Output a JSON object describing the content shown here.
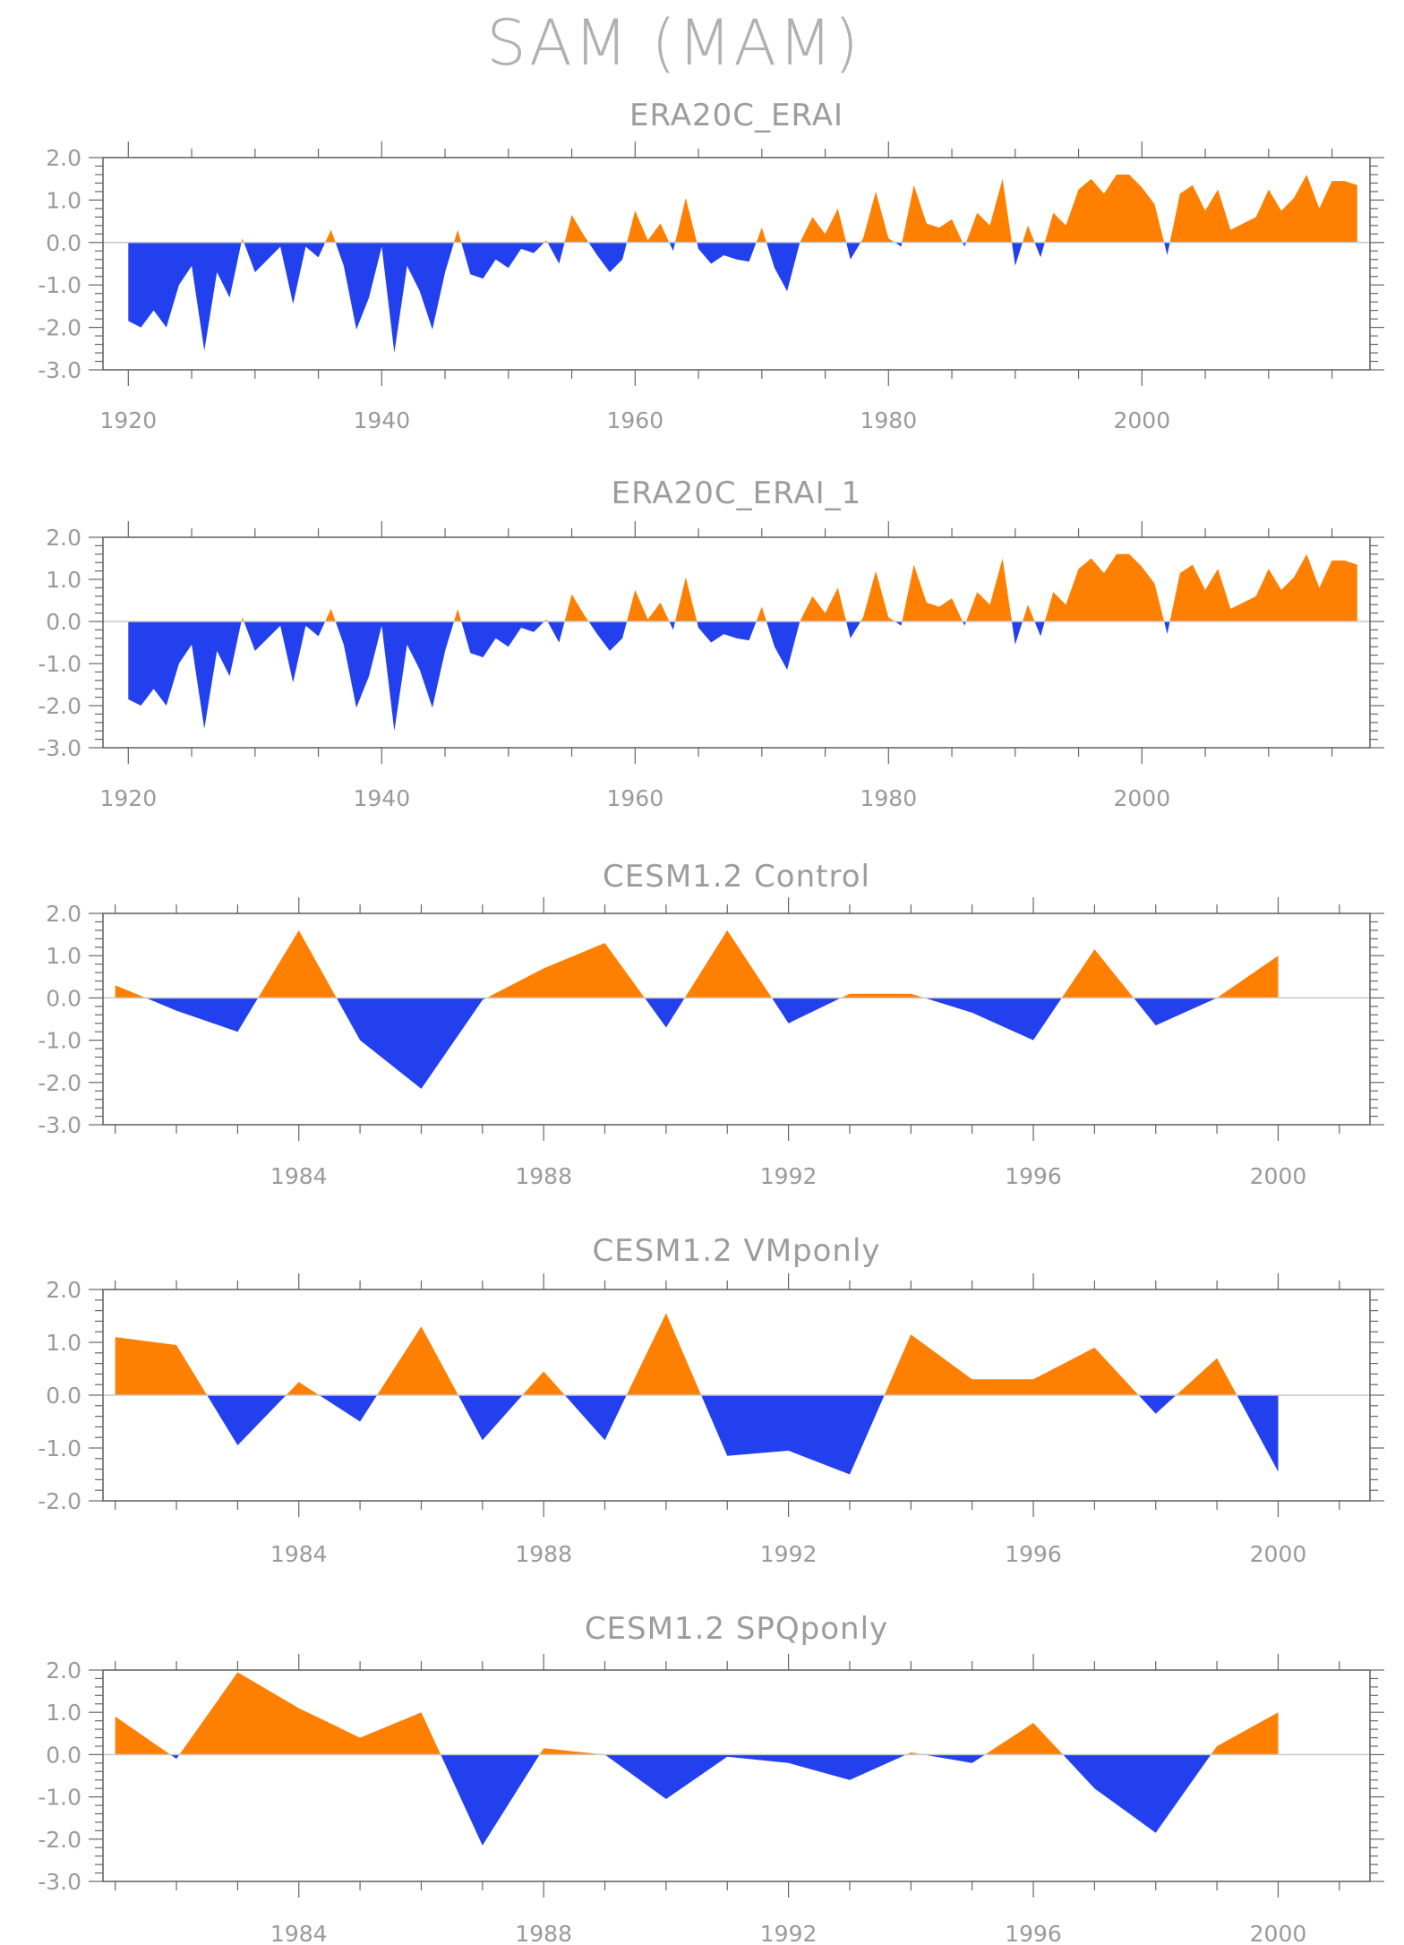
{
  "title": "SAM (MAM)",
  "colors": {
    "positive": "#ff8000",
    "negative": "#2340ee",
    "axis": "#666666",
    "zero_line": "#c8c8c8"
  },
  "chart_data": [
    {
      "type": "area",
      "title": "ERA20C_ERAI",
      "xlabel": "",
      "ylabel": "",
      "xlim": [
        1918,
        2018
      ],
      "ylim": [
        -3,
        2
      ],
      "xticks": [
        1920,
        1940,
        1960,
        1980,
        2000
      ],
      "xtick_labels": [
        "1920",
        "1940",
        "1960",
        "1980",
        "2000"
      ],
      "yticks": [
        -3,
        -2,
        -1,
        0,
        1,
        2
      ],
      "ytick_labels": [
        "-3.0",
        "-2.0",
        "-1.0",
        "0.0",
        "1.0",
        "2.0"
      ],
      "x": [
        1920,
        1921,
        1922,
        1923,
        1924,
        1925,
        1926,
        1927,
        1928,
        1929,
        1930,
        1931,
        1932,
        1933,
        1934,
        1935,
        1936,
        1937,
        1938,
        1939,
        1940,
        1941,
        1942,
        1943,
        1944,
        1945,
        1946,
        1947,
        1948,
        1949,
        1950,
        1951,
        1952,
        1953,
        1954,
        1955,
        1956,
        1957,
        1958,
        1959,
        1960,
        1961,
        1962,
        1963,
        1964,
        1965,
        1966,
        1967,
        1968,
        1969,
        1970,
        1971,
        1972,
        1973,
        1974,
        1975,
        1976,
        1977,
        1978,
        1979,
        1980,
        1981,
        1982,
        1983,
        1984,
        1985,
        1986,
        1987,
        1988,
        1989,
        1990,
        1991,
        1992,
        1993,
        1994,
        1995,
        1996,
        1997,
        1998,
        1999,
        2000,
        2001,
        2002,
        2003,
        2004,
        2005,
        2006,
        2007,
        2008,
        2009,
        2010,
        2011,
        2012,
        2013,
        2014,
        2015,
        2016,
        2017
      ],
      "values": [
        -1.85,
        -2.0,
        -1.6,
        -2.0,
        -1.0,
        -0.55,
        -2.55,
        -0.7,
        -1.3,
        0.1,
        -0.7,
        -0.4,
        -0.1,
        -1.45,
        -0.1,
        -0.35,
        0.3,
        -0.55,
        -2.05,
        -1.3,
        -0.1,
        -2.6,
        -0.55,
        -1.15,
        -2.05,
        -0.7,
        0.3,
        -0.75,
        -0.85,
        -0.4,
        -0.6,
        -0.15,
        -0.25,
        0.05,
        -0.5,
        0.65,
        0.15,
        -0.3,
        -0.7,
        -0.4,
        0.75,
        0.05,
        0.45,
        -0.2,
        1.05,
        -0.15,
        -0.5,
        -0.3,
        -0.4,
        -0.45,
        0.35,
        -0.6,
        -1.15,
        0.0,
        0.6,
        0.2,
        0.8,
        -0.4,
        0.1,
        1.2,
        0.1,
        -0.1,
        1.35,
        0.45,
        0.35,
        0.55,
        -0.1,
        0.7,
        0.4,
        1.5,
        -0.55,
        0.4,
        -0.35,
        0.7,
        0.4,
        1.25,
        1.5,
        1.15,
        1.6,
        1.6,
        1.3,
        0.9,
        -0.3,
        1.15,
        1.35,
        0.75,
        1.25,
        0.3,
        0.45,
        0.6,
        1.25,
        0.75,
        1.05,
        1.6,
        0.8,
        1.45,
        1.45,
        1.35
      ]
    },
    {
      "type": "area",
      "title": "ERA20C_ERAI_1",
      "xlabel": "",
      "ylabel": "",
      "xlim": [
        1918,
        2018
      ],
      "ylim": [
        -3,
        2
      ],
      "xticks": [
        1920,
        1940,
        1960,
        1980,
        2000
      ],
      "xtick_labels": [
        "1920",
        "1940",
        "1960",
        "1980",
        "2000"
      ],
      "yticks": [
        -3,
        -2,
        -1,
        0,
        1,
        2
      ],
      "ytick_labels": [
        "-3.0",
        "-2.0",
        "-1.0",
        "0.0",
        "1.0",
        "2.0"
      ],
      "x": [
        1920,
        1921,
        1922,
        1923,
        1924,
        1925,
        1926,
        1927,
        1928,
        1929,
        1930,
        1931,
        1932,
        1933,
        1934,
        1935,
        1936,
        1937,
        1938,
        1939,
        1940,
        1941,
        1942,
        1943,
        1944,
        1945,
        1946,
        1947,
        1948,
        1949,
        1950,
        1951,
        1952,
        1953,
        1954,
        1955,
        1956,
        1957,
        1958,
        1959,
        1960,
        1961,
        1962,
        1963,
        1964,
        1965,
        1966,
        1967,
        1968,
        1969,
        1970,
        1971,
        1972,
        1973,
        1974,
        1975,
        1976,
        1977,
        1978,
        1979,
        1980,
        1981,
        1982,
        1983,
        1984,
        1985,
        1986,
        1987,
        1988,
        1989,
        1990,
        1991,
        1992,
        1993,
        1994,
        1995,
        1996,
        1997,
        1998,
        1999,
        2000,
        2001,
        2002,
        2003,
        2004,
        2005,
        2006,
        2007,
        2008,
        2009,
        2010,
        2011,
        2012,
        2013,
        2014,
        2015,
        2016,
        2017
      ],
      "values": [
        -1.85,
        -2.0,
        -1.6,
        -2.0,
        -1.0,
        -0.55,
        -2.55,
        -0.7,
        -1.3,
        0.1,
        -0.7,
        -0.4,
        -0.1,
        -1.45,
        -0.1,
        -0.35,
        0.3,
        -0.55,
        -2.05,
        -1.3,
        -0.1,
        -2.6,
        -0.55,
        -1.15,
        -2.05,
        -0.7,
        0.3,
        -0.75,
        -0.85,
        -0.4,
        -0.6,
        -0.15,
        -0.25,
        0.05,
        -0.5,
        0.65,
        0.15,
        -0.3,
        -0.7,
        -0.4,
        0.75,
        0.05,
        0.45,
        -0.2,
        1.05,
        -0.15,
        -0.5,
        -0.3,
        -0.4,
        -0.45,
        0.35,
        -0.6,
        -1.15,
        0.0,
        0.6,
        0.2,
        0.8,
        -0.4,
        0.1,
        1.2,
        0.1,
        -0.1,
        1.35,
        0.45,
        0.35,
        0.55,
        -0.1,
        0.7,
        0.4,
        1.5,
        -0.55,
        0.4,
        -0.35,
        0.7,
        0.4,
        1.25,
        1.5,
        1.15,
        1.6,
        1.6,
        1.3,
        0.9,
        -0.3,
        1.15,
        1.35,
        0.75,
        1.25,
        0.3,
        0.45,
        0.6,
        1.25,
        0.75,
        1.05,
        1.6,
        0.8,
        1.45,
        1.45,
        1.35
      ]
    },
    {
      "type": "area",
      "title": "CESM1.2 Control",
      "xlabel": "",
      "ylabel": "",
      "xlim": [
        1980.8,
        2001.5
      ],
      "ylim": [
        -3,
        2
      ],
      "xticks": [
        1984,
        1988,
        1992,
        1996,
        2000
      ],
      "xtick_labels": [
        "1984",
        "1988",
        "1992",
        "1996",
        "2000"
      ],
      "yticks": [
        -3,
        -2,
        -1,
        0,
        1,
        2
      ],
      "ytick_labels": [
        "-3.0",
        "-2.0",
        "-1.0",
        "0.0",
        "1.0",
        "2.0"
      ],
      "x": [
        1981,
        1982,
        1983,
        1984,
        1985,
        1986,
        1987,
        1988,
        1989,
        1990,
        1991,
        1992,
        1993,
        1994,
        1995,
        1996,
        1997,
        1998,
        1999,
        2000
      ],
      "values": [
        0.3,
        -0.3,
        -0.8,
        1.6,
        -1.0,
        -2.15,
        -0.05,
        0.7,
        1.3,
        -0.7,
        1.6,
        -0.6,
        0.1,
        0.1,
        -0.35,
        -1.0,
        1.15,
        -0.65,
        0.0,
        1.0
      ]
    },
    {
      "type": "area",
      "title": "CESM1.2 VMponly",
      "xlabel": "",
      "ylabel": "",
      "xlim": [
        1980.8,
        2001.5
      ],
      "ylim": [
        -2,
        2
      ],
      "xticks": [
        1984,
        1988,
        1992,
        1996,
        2000
      ],
      "xtick_labels": [
        "1984",
        "1988",
        "1992",
        "1996",
        "2000"
      ],
      "yticks": [
        -2,
        -1,
        0,
        1,
        2
      ],
      "ytick_labels": [
        "-2.0",
        "-1.0",
        "0.0",
        "1.0",
        "2.0"
      ],
      "x": [
        1981,
        1982,
        1983,
        1984,
        1985,
        1986,
        1987,
        1988,
        1989,
        1990,
        1991,
        1992,
        1993,
        1994,
        1995,
        1996,
        1997,
        1998,
        1999,
        2000
      ],
      "values": [
        1.1,
        0.95,
        -0.95,
        0.25,
        -0.5,
        1.3,
        -0.85,
        0.45,
        -0.85,
        1.55,
        -1.15,
        -1.05,
        -1.5,
        1.15,
        0.3,
        0.3,
        0.9,
        -0.35,
        0.7,
        -1.45
      ]
    },
    {
      "type": "area",
      "title": "CESM1.2 SPQponly",
      "xlabel": "",
      "ylabel": "",
      "xlim": [
        1980.8,
        2001.5
      ],
      "ylim": [
        -3,
        2
      ],
      "xticks": [
        1984,
        1988,
        1992,
        1996,
        2000
      ],
      "xtick_labels": [
        "1984",
        "1988",
        "1992",
        "1996",
        "2000"
      ],
      "yticks": [
        -3,
        -2,
        -1,
        0,
        1,
        2
      ],
      "ytick_labels": [
        "-3.0",
        "-2.0",
        "-1.0",
        "0.0",
        "1.0",
        "2.0"
      ],
      "x": [
        1981,
        1982,
        1983,
        1984,
        1985,
        1986,
        1987,
        1988,
        1989,
        1990,
        1991,
        1992,
        1993,
        1994,
        1995,
        1996,
        1997,
        1998,
        1999,
        2000
      ],
      "values": [
        0.9,
        -0.1,
        1.95,
        1.1,
        0.4,
        1.0,
        -2.15,
        0.15,
        0.0,
        -1.05,
        -0.05,
        -0.2,
        -0.6,
        0.05,
        -0.2,
        0.75,
        -0.8,
        -1.85,
        0.2,
        1.0
      ]
    }
  ]
}
